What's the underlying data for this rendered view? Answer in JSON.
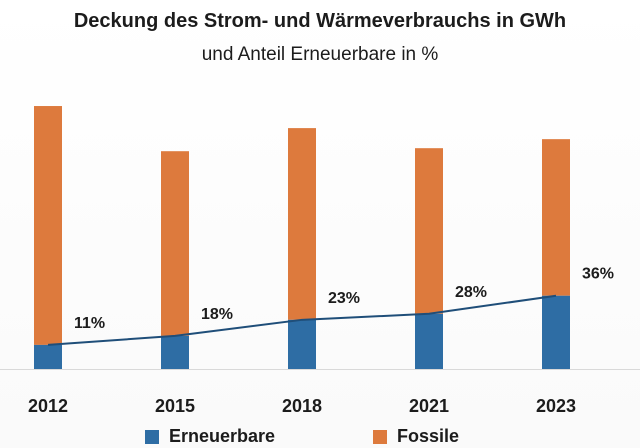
{
  "chart_data": {
    "type": "bar",
    "stacked": true,
    "title": "Deckung des Strom- und Wärmeverbrauchs in GWh",
    "subtitle": "und Anteil Erneuerbare in %",
    "categories": [
      "2012",
      "2015",
      "2018",
      "2021",
      "2023"
    ],
    "series": [
      {
        "name": "Erneuerbare",
        "color": "#2e6da4",
        "values": [
          24,
          33,
          49,
          55,
          73
        ]
      },
      {
        "name": "Fossile",
        "color": "#dd7a3d",
        "values": [
          238,
          184,
          191,
          165,
          156
        ]
      }
    ],
    "share_line": {
      "color": "#1f4e79",
      "values": [
        11,
        18,
        23,
        28,
        36
      ],
      "labels": [
        "11%",
        "18%",
        "23%",
        "28%",
        "36%"
      ]
    },
    "ylim": [
      0,
      270
    ],
    "grid": false,
    "legend_position": "bottom"
  }
}
